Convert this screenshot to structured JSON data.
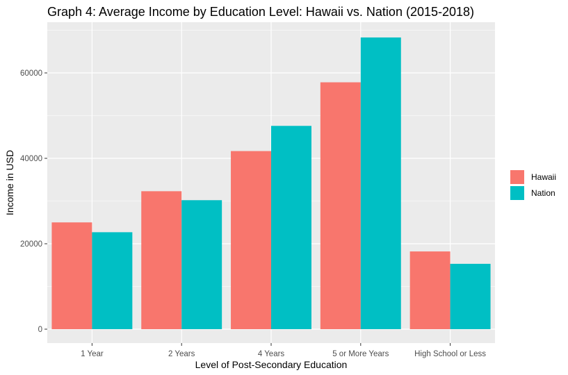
{
  "chart_data": {
    "type": "bar",
    "title": "Graph 4: Average Income by Education Level: Hawaii vs. Nation (2015-2018)",
    "xlabel": "Level of Post-Secondary Education",
    "ylabel": "Income in USD",
    "categories": [
      "1 Year",
      "2 Years",
      "4 Years",
      "5 or More Years",
      "High School or Less"
    ],
    "series": [
      {
        "name": "Hawaii",
        "color": "#F8766D",
        "values": [
          25000,
          32300,
          41700,
          57800,
          18200
        ]
      },
      {
        "name": "Nation",
        "color": "#00BFC4",
        "values": [
          22700,
          30200,
          47600,
          68300,
          15300
        ]
      }
    ],
    "ylim": [
      0,
      70500
    ],
    "y_ticks": [
      0,
      20000,
      40000,
      60000
    ],
    "y_tick_labels": [
      "0",
      "20000",
      "40000",
      "60000"
    ],
    "y_minor_ticks": [
      10000,
      30000,
      50000,
      70000
    ],
    "grid": true,
    "legend_position": "right",
    "colors": {
      "panel_background": "#EBEBEB",
      "grid_line": "#FFFFFF"
    }
  }
}
